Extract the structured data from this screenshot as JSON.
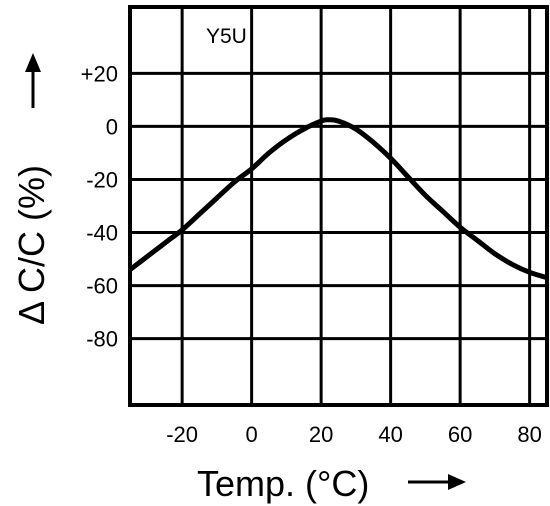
{
  "chart_data": {
    "type": "line",
    "annotation": "Y5U",
    "xlabel": "Temp. (°C)",
    "ylabel": "Δ C/C (%)",
    "xlim": [
      -35,
      85
    ],
    "ylim": [
      -105,
      45
    ],
    "xticks": [
      -20,
      0,
      20,
      40,
      60,
      80
    ],
    "xtick_labels": [
      "-20",
      "0",
      "20",
      "40",
      "60",
      "80"
    ],
    "yticks": [
      20,
      0,
      -20,
      -40,
      -60,
      -80
    ],
    "ytick_labels": [
      "+20",
      "0",
      "-20",
      "-40",
      "-60",
      "-80"
    ],
    "grid": true,
    "series": [
      {
        "color": "#000000",
        "x": [
          -35,
          -30,
          -25,
          -20,
          -15,
          -10,
          -5,
          0,
          5,
          10,
          15,
          20,
          22,
          25,
          30,
          35,
          40,
          45,
          50,
          55,
          60,
          65,
          70,
          75,
          80,
          85
        ],
        "y": [
          -54,
          -49,
          -44,
          -39,
          -33,
          -27,
          -21,
          -16,
          -10,
          -5,
          -1,
          2,
          2.5,
          2,
          -1,
          -6,
          -12,
          -19,
          -26,
          -32,
          -38,
          -43,
          -48,
          -52,
          -55,
          -57
        ]
      }
    ]
  }
}
